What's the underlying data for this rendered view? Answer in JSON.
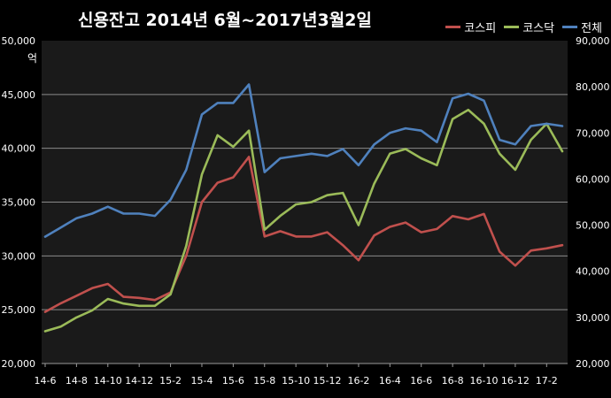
{
  "chart_data": {
    "type": "line",
    "title": "신용잔고 2014년 6월~2017년3월2일",
    "ylabel": "억",
    "legend_position": "top-right",
    "grid": true,
    "background": "#000000",
    "x_tick_labels": [
      "14-6",
      "14-8",
      "14-10",
      "14-12",
      "15-2",
      "15-4",
      "15-6",
      "15-8",
      "15-10",
      "15-12",
      "16-2",
      "16-4",
      "16-6",
      "16-8",
      "16-10",
      "16-12",
      "17-2"
    ],
    "x": [
      "14-6",
      "14-7",
      "14-8",
      "14-9",
      "14-10",
      "14-11",
      "14-12",
      "15-1",
      "15-2",
      "15-3",
      "15-4",
      "15-5",
      "15-6",
      "15-7",
      "15-8",
      "15-9",
      "15-10",
      "15-11",
      "15-12",
      "16-1",
      "16-2",
      "16-3",
      "16-4",
      "16-5",
      "16-6",
      "16-7",
      "16-8",
      "16-9",
      "16-10",
      "16-11",
      "16-12",
      "17-1",
      "17-2",
      "17-3"
    ],
    "left_axis": {
      "ylim": [
        20000,
        50000
      ],
      "ticks": [
        "20,000",
        "25,000",
        "30,000",
        "35,000",
        "40,000",
        "45,000",
        "50,000"
      ]
    },
    "right_axis": {
      "ylim": [
        20000,
        90000
      ],
      "ticks": [
        "20,000",
        "30,000",
        "40,000",
        "50,000",
        "60,000",
        "70,000",
        "80,000",
        "90,000"
      ]
    },
    "series": [
      {
        "name": "코스피",
        "axis": "left",
        "color": "#c0504d",
        "values": [
          24800,
          25600,
          26300,
          27000,
          27400,
          26200,
          26100,
          25900,
          26600,
          30000,
          35000,
          36800,
          37300,
          39200,
          31800,
          32300,
          31800,
          31800,
          32200,
          31000,
          29600,
          31900,
          32700,
          33100,
          32200,
          32500,
          33700,
          33400,
          33900,
          30400,
          29100,
          30500,
          30700,
          31000
        ]
      },
      {
        "name": "코스닥",
        "axis": "right",
        "color": "#9bbb59",
        "values": [
          27000,
          28000,
          30000,
          31500,
          34000,
          33000,
          32500,
          32500,
          35000,
          45500,
          61000,
          69500,
          67000,
          70500,
          49000,
          52000,
          54500,
          55000,
          56500,
          57000,
          50000,
          59000,
          65500,
          66500,
          64500,
          63000,
          73000,
          75000,
          72000,
          65500,
          62000,
          68500,
          72000,
          66000
        ]
      },
      {
        "name": "전체",
        "axis": "right",
        "color": "#4f81bd",
        "values": [
          47500,
          49500,
          51500,
          52500,
          54000,
          52500,
          52500,
          52000,
          55500,
          62000,
          74000,
          76500,
          76500,
          80500,
          61500,
          64500,
          65000,
          65500,
          65000,
          66500,
          63000,
          67500,
          70000,
          71000,
          70500,
          68000,
          77500,
          78500,
          77000,
          68500,
          67500,
          71500,
          72000,
          71500
        ]
      }
    ]
  }
}
